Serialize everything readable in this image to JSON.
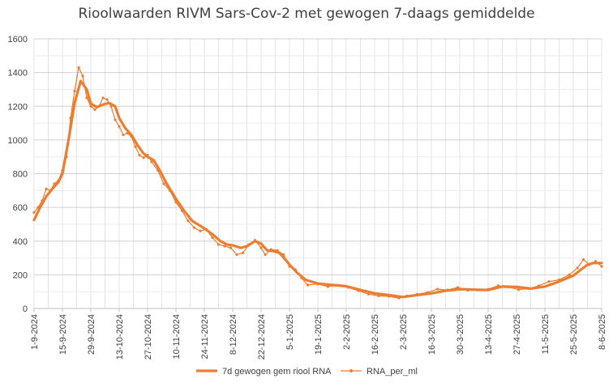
{
  "chart_data": {
    "type": "line",
    "title": "Rioolwaarden RIVM Sars-Cov-2 met gewogen 7-daags gemiddelde",
    "xlabel": "",
    "ylabel": "",
    "ylim": [
      0,
      1600
    ],
    "y_ticks": [
      0,
      200,
      400,
      600,
      800,
      1000,
      1200,
      1400,
      1600
    ],
    "x_range": [
      "2024-09-01",
      "2025-06-08"
    ],
    "x_tick_labels": [
      "1-9-2024",
      "15-9-2024",
      "29-9-2024",
      "13-10-2024",
      "27-10-2024",
      "10-11-2024",
      "24-11-2024",
      "8-12-2024",
      "22-12-2024",
      "5-1-2025",
      "19-1-2025",
      "2-2-2025",
      "16-2-2025",
      "2-3-2025",
      "16-3-2025",
      "30-3-2025",
      "13-4-2025",
      "27-4-2025",
      "11-5-2025",
      "25-5-2025",
      "8-6-2025"
    ],
    "x_ticks": [
      "2024-09-01",
      "2024-09-15",
      "2024-09-29",
      "2024-10-13",
      "2024-10-27",
      "2024-11-10",
      "2024-11-24",
      "2024-12-08",
      "2024-12-22",
      "2025-01-05",
      "2025-01-19",
      "2025-02-02",
      "2025-02-16",
      "2025-03-02",
      "2025-03-16",
      "2025-03-30",
      "2025-04-13",
      "2025-04-27",
      "2025-05-11",
      "2025-05-25",
      "2025-06-08"
    ],
    "grid": true,
    "legend_position": "bottom",
    "series": [
      {
        "name": "7d gewogen gem riool RNA",
        "color": "#ED7D31",
        "marker": "none",
        "points": [
          [
            "2024-09-01",
            525
          ],
          [
            "2024-09-04",
            600
          ],
          [
            "2024-09-07",
            665
          ],
          [
            "2024-09-10",
            710
          ],
          [
            "2024-09-13",
            750
          ],
          [
            "2024-09-15",
            800
          ],
          [
            "2024-09-18",
            1000
          ],
          [
            "2024-09-21",
            1220
          ],
          [
            "2024-09-24",
            1350
          ],
          [
            "2024-09-27",
            1300
          ],
          [
            "2024-09-29",
            1215
          ],
          [
            "2024-10-02",
            1195
          ],
          [
            "2024-10-05",
            1210
          ],
          [
            "2024-10-08",
            1220
          ],
          [
            "2024-10-11",
            1200
          ],
          [
            "2024-10-13",
            1130
          ],
          [
            "2024-10-16",
            1070
          ],
          [
            "2024-10-19",
            1030
          ],
          [
            "2024-10-22",
            970
          ],
          [
            "2024-10-25",
            920
          ],
          [
            "2024-10-27",
            900
          ],
          [
            "2024-10-30",
            880
          ],
          [
            "2024-11-02",
            820
          ],
          [
            "2024-11-05",
            750
          ],
          [
            "2024-11-08",
            690
          ],
          [
            "2024-11-10",
            650
          ],
          [
            "2024-11-14",
            580
          ],
          [
            "2024-11-18",
            520
          ],
          [
            "2024-11-22",
            490
          ],
          [
            "2024-11-24",
            475
          ],
          [
            "2024-11-28",
            440
          ],
          [
            "2024-12-02",
            400
          ],
          [
            "2024-12-05",
            380
          ],
          [
            "2024-12-08",
            375
          ],
          [
            "2024-12-12",
            360
          ],
          [
            "2024-12-15",
            370
          ],
          [
            "2024-12-19",
            400
          ],
          [
            "2024-12-22",
            385
          ],
          [
            "2024-12-25",
            345
          ],
          [
            "2024-12-28",
            340
          ],
          [
            "2024-12-31",
            330
          ],
          [
            "2025-01-03",
            290
          ],
          [
            "2025-01-05",
            260
          ],
          [
            "2025-01-09",
            210
          ],
          [
            "2025-01-13",
            170
          ],
          [
            "2025-01-19",
            148
          ],
          [
            "2025-01-26",
            140
          ],
          [
            "2025-02-02",
            132
          ],
          [
            "2025-02-09",
            110
          ],
          [
            "2025-02-16",
            90
          ],
          [
            "2025-02-23",
            80
          ],
          [
            "2025-03-02",
            68
          ],
          [
            "2025-03-09",
            80
          ],
          [
            "2025-03-16",
            90
          ],
          [
            "2025-03-23",
            105
          ],
          [
            "2025-03-30",
            115
          ],
          [
            "2025-04-06",
            112
          ],
          [
            "2025-04-13",
            110
          ],
          [
            "2025-04-20",
            130
          ],
          [
            "2025-04-27",
            128
          ],
          [
            "2025-05-04",
            118
          ],
          [
            "2025-05-11",
            130
          ],
          [
            "2025-05-18",
            160
          ],
          [
            "2025-05-25",
            195
          ],
          [
            "2025-06-01",
            260
          ],
          [
            "2025-06-04",
            270
          ],
          [
            "2025-06-08",
            270
          ]
        ]
      },
      {
        "name": "RNA_per_ml",
        "color": "#ED7D31",
        "marker": "dot",
        "points": [
          [
            "2024-09-01",
            570
          ],
          [
            "2024-09-03",
            600
          ],
          [
            "2024-09-05",
            640
          ],
          [
            "2024-09-07",
            710
          ],
          [
            "2024-09-09",
            700
          ],
          [
            "2024-09-11",
            740
          ],
          [
            "2024-09-13",
            760
          ],
          [
            "2024-09-15",
            820
          ],
          [
            "2024-09-17",
            900
          ],
          [
            "2024-09-19",
            1130
          ],
          [
            "2024-09-21",
            1290
          ],
          [
            "2024-09-23",
            1430
          ],
          [
            "2024-09-25",
            1380
          ],
          [
            "2024-09-27",
            1250
          ],
          [
            "2024-09-29",
            1200
          ],
          [
            "2024-10-01",
            1180
          ],
          [
            "2024-10-03",
            1200
          ],
          [
            "2024-10-05",
            1250
          ],
          [
            "2024-10-07",
            1240
          ],
          [
            "2024-10-09",
            1200
          ],
          [
            "2024-10-11",
            1120
          ],
          [
            "2024-10-13",
            1080
          ],
          [
            "2024-10-15",
            1030
          ],
          [
            "2024-10-17",
            1040
          ],
          [
            "2024-10-19",
            1020
          ],
          [
            "2024-10-21",
            960
          ],
          [
            "2024-10-23",
            910
          ],
          [
            "2024-10-25",
            895
          ],
          [
            "2024-10-27",
            910
          ],
          [
            "2024-10-29",
            870
          ],
          [
            "2024-11-01",
            820
          ],
          [
            "2024-11-04",
            740
          ],
          [
            "2024-11-07",
            700
          ],
          [
            "2024-11-10",
            630
          ],
          [
            "2024-11-13",
            580
          ],
          [
            "2024-11-16",
            520
          ],
          [
            "2024-11-19",
            480
          ],
          [
            "2024-11-22",
            460
          ],
          [
            "2024-11-25",
            470
          ],
          [
            "2024-11-28",
            420
          ],
          [
            "2024-12-01",
            380
          ],
          [
            "2024-12-04",
            370
          ],
          [
            "2024-12-07",
            360
          ],
          [
            "2024-12-10",
            320
          ],
          [
            "2024-12-13",
            330
          ],
          [
            "2024-12-16",
            380
          ],
          [
            "2024-12-19",
            405
          ],
          [
            "2024-12-22",
            360
          ],
          [
            "2024-12-24",
            320
          ],
          [
            "2024-12-27",
            350
          ],
          [
            "2024-12-30",
            345
          ],
          [
            "2025-01-02",
            320
          ],
          [
            "2025-01-05",
            250
          ],
          [
            "2025-01-08",
            230
          ],
          [
            "2025-01-11",
            180
          ],
          [
            "2025-01-14",
            140
          ],
          [
            "2025-01-19",
            145
          ],
          [
            "2025-01-24",
            130
          ],
          [
            "2025-01-29",
            138
          ],
          [
            "2025-02-03",
            125
          ],
          [
            "2025-02-08",
            105
          ],
          [
            "2025-02-13",
            85
          ],
          [
            "2025-02-18",
            75
          ],
          [
            "2025-02-23",
            72
          ],
          [
            "2025-02-28",
            62
          ],
          [
            "2025-03-04",
            75
          ],
          [
            "2025-03-09",
            85
          ],
          [
            "2025-03-14",
            95
          ],
          [
            "2025-03-19",
            115
          ],
          [
            "2025-03-24",
            110
          ],
          [
            "2025-03-29",
            125
          ],
          [
            "2025-04-03",
            108
          ],
          [
            "2025-04-08",
            110
          ],
          [
            "2025-04-13",
            115
          ],
          [
            "2025-04-18",
            135
          ],
          [
            "2025-04-23",
            128
          ],
          [
            "2025-04-28",
            112
          ],
          [
            "2025-05-03",
            118
          ],
          [
            "2025-05-08",
            135
          ],
          [
            "2025-05-13",
            160
          ],
          [
            "2025-05-18",
            170
          ],
          [
            "2025-05-23",
            200
          ],
          [
            "2025-05-27",
            240
          ],
          [
            "2025-05-30",
            290
          ],
          [
            "2025-06-02",
            260
          ],
          [
            "2025-06-05",
            280
          ],
          [
            "2025-06-08",
            250
          ]
        ]
      }
    ]
  }
}
